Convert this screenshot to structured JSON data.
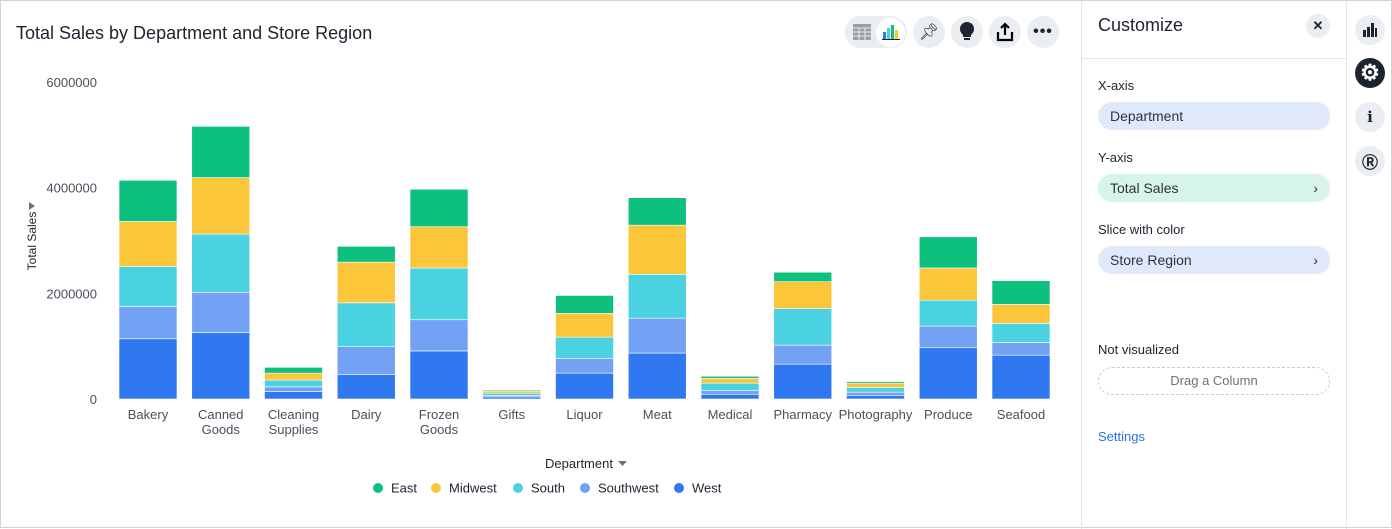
{
  "header": {
    "title": "Total Sales by Department and Store Region"
  },
  "toolbar": {
    "icons": [
      "table-icon",
      "chart-icon",
      "pin-icon",
      "lightbulb-icon",
      "share-icon",
      "more-icon"
    ]
  },
  "customize": {
    "title": "Customize",
    "x_axis_label": "X-axis",
    "x_axis_value": "Department",
    "y_axis_label": "Y-axis",
    "y_axis_value": "Total Sales",
    "color_label": "Slice with color",
    "color_value": "Store Region",
    "not_visualized_label": "Not visualized",
    "drag_placeholder": "Drag a Column",
    "settings_link": "Settings"
  },
  "rail": {
    "icons": [
      "bar-chart-icon",
      "gear-icon",
      "info-icon",
      "r-icon"
    ]
  },
  "chart_data": {
    "type": "bar",
    "stacked": true,
    "title": "Total Sales by Department and Store Region",
    "xlabel": "Department",
    "ylabel": "Total Sales",
    "ylim": [
      0,
      6000000
    ],
    "yticks": [
      "0",
      "2000000",
      "4000000",
      "6000000"
    ],
    "legend_position": "bottom",
    "grid": false,
    "categories": [
      "Bakery",
      "Canned Goods",
      "Cleaning Supplies",
      "Dairy",
      "Frozen Goods",
      "Gifts",
      "Liquor",
      "Meat",
      "Medical",
      "Pharmacy",
      "Photography",
      "Produce",
      "Seafood"
    ],
    "series": [
      {
        "name": "West",
        "color": "#2f78ef",
        "values": [
          1140000,
          1260000,
          140000,
          460000,
          910000,
          40000,
          490000,
          870000,
          90000,
          660000,
          70000,
          970000,
          830000
        ]
      },
      {
        "name": "Southwest",
        "color": "#73a1f4",
        "values": [
          610000,
          760000,
          90000,
          530000,
          590000,
          30000,
          280000,
          660000,
          70000,
          360000,
          60000,
          410000,
          240000
        ]
      },
      {
        "name": "South",
        "color": "#4bd2e0",
        "values": [
          760000,
          1100000,
          130000,
          830000,
          980000,
          40000,
          400000,
          830000,
          140000,
          690000,
          90000,
          490000,
          360000
        ]
      },
      {
        "name": "Midwest",
        "color": "#fcc63a",
        "values": [
          850000,
          1070000,
          130000,
          770000,
          780000,
          40000,
          450000,
          930000,
          90000,
          510000,
          80000,
          610000,
          360000
        ]
      },
      {
        "name": "East",
        "color": "#0ec07d",
        "values": [
          780000,
          970000,
          110000,
          300000,
          710000,
          20000,
          340000,
          520000,
          40000,
          180000,
          30000,
          590000,
          450000
        ]
      }
    ],
    "legend_order": [
      "East",
      "Midwest",
      "South",
      "Southwest",
      "West"
    ]
  }
}
